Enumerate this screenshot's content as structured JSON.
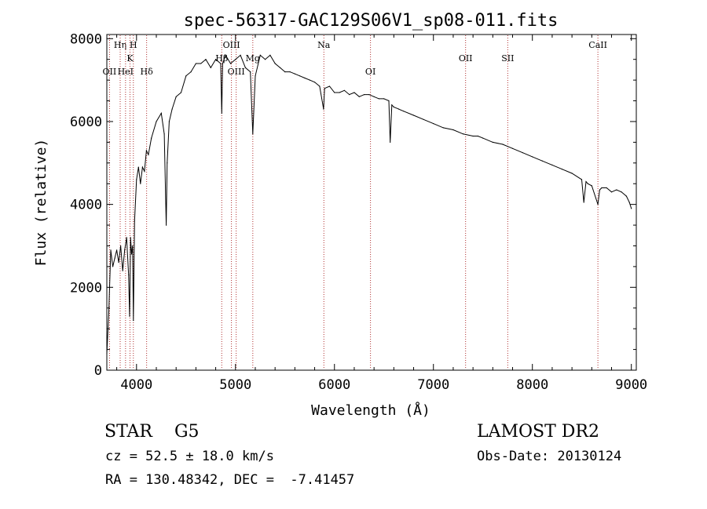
{
  "chart_data": {
    "type": "line",
    "title": "spec-56317-GAC129S06V1_sp08-011.fits",
    "xlabel": "Wavelength (Å)",
    "ylabel": "Flux (relative)",
    "xlim": [
      3700,
      9050
    ],
    "ylim": [
      0,
      8100
    ],
    "x_ticks": [
      4000,
      5000,
      6000,
      7000,
      8000,
      9000
    ],
    "y_ticks": [
      0,
      2000,
      4000,
      6000,
      8000
    ],
    "grid": false,
    "series": [
      {
        "x": [
          3700,
          3720,
          3740,
          3760,
          3780,
          3800,
          3820,
          3840,
          3860,
          3880,
          3900,
          3920,
          3930,
          3940,
          3950,
          3960,
          3968,
          3980,
          4000,
          4020,
          4040,
          4060,
          4080,
          4100,
          4120,
          4150,
          4200,
          4250,
          4280,
          4300,
          4310,
          4330,
          4360,
          4400,
          4450,
          4500,
          4550,
          4600,
          4650,
          4700,
          4750,
          4800,
          4850,
          4861,
          4870,
          4900,
          4950,
          5000,
          5050,
          5100,
          5150,
          5175,
          5200,
          5250,
          5300,
          5350,
          5400,
          5450,
          5500,
          5550,
          5600,
          5650,
          5700,
          5750,
          5800,
          5850,
          5890,
          5900,
          5950,
          6000,
          6050,
          6100,
          6150,
          6200,
          6250,
          6300,
          6350,
          6400,
          6450,
          6500,
          6550,
          6563,
          6580,
          6600,
          6650,
          6700,
          6800,
          6900,
          7000,
          7100,
          7200,
          7300,
          7400,
          7450,
          7500,
          7600,
          7700,
          7800,
          7900,
          8000,
          8100,
          8200,
          8300,
          8400,
          8498,
          8520,
          8542,
          8560,
          8600,
          8662,
          8680,
          8700,
          8750,
          8800,
          8850,
          8900,
          8950,
          8980,
          9000
        ],
        "y": [
          400,
          1400,
          2900,
          2500,
          2700,
          2900,
          2600,
          3000,
          2400,
          2900,
          3200,
          2300,
          1300,
          3200,
          2800,
          3000,
          1200,
          3600,
          4600,
          4900,
          4500,
          4900,
          4800,
          5300,
          5200,
          5600,
          6000,
          6200,
          5700,
          3500,
          5000,
          6000,
          6300,
          6600,
          6700,
          7100,
          7200,
          7400,
          7400,
          7500,
          7300,
          7500,
          7400,
          6200,
          7400,
          7600,
          7400,
          7500,
          7600,
          7300,
          7200,
          5700,
          7100,
          7600,
          7500,
          7600,
          7400,
          7300,
          7200,
          7200,
          7150,
          7100,
          7050,
          7000,
          6950,
          6850,
          6300,
          6800,
          6850,
          6700,
          6700,
          6750,
          6650,
          6700,
          6600,
          6650,
          6650,
          6600,
          6550,
          6550,
          6500,
          5500,
          6400,
          6350,
          6300,
          6250,
          6150,
          6050,
          5950,
          5850,
          5800,
          5700,
          5650,
          5650,
          5600,
          5500,
          5450,
          5350,
          5250,
          5150,
          5050,
          4950,
          4850,
          4750,
          4600,
          4050,
          4550,
          4500,
          4450,
          4000,
          4350,
          4400,
          4400,
          4300,
          4350,
          4300,
          4200,
          4050,
          3900
        ]
      }
    ],
    "line_markers": [
      {
        "label": "OII",
        "x": 3727
      },
      {
        "label": "Hη",
        "x": 3835
      },
      {
        "label": "HeI",
        "x": 3889
      },
      {
        "label": "K",
        "x": 3934
      },
      {
        "label": "H",
        "x": 3968
      },
      {
        "label": "Hδ",
        "x": 4102
      },
      {
        "label": "Hβ",
        "x": 4861
      },
      {
        "label": "OIII",
        "x": 4959
      },
      {
        "label": "OIII",
        "x": 5007
      },
      {
        "label": "Mg",
        "x": 5175
      },
      {
        "label": "Na",
        "x": 5893
      },
      {
        "label": "OI",
        "x": 6364
      },
      {
        "label": "OII",
        "x": 7325
      },
      {
        "label": "SII",
        "x": 7751
      },
      {
        "label": "CaII",
        "x": 8662
      }
    ]
  },
  "footer": {
    "object": "STAR    G5",
    "survey": "LAMOST DR2",
    "cz": "cz = 52.5 ± 18.0 km/s",
    "obs_date": "Obs-Date: 20130124",
    "coords": "RA = 130.48342, DEC =  -7.41457"
  }
}
